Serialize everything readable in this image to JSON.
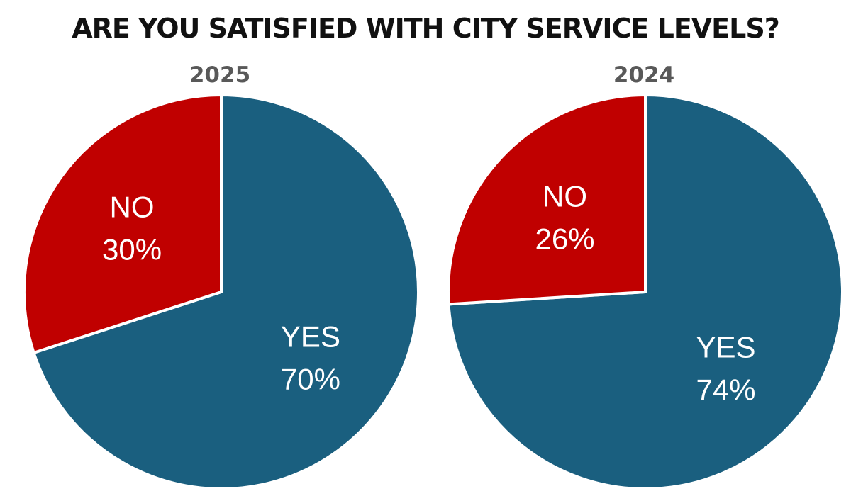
{
  "chart_data": [
    {
      "type": "pie",
      "title": "ARE YOU SATISFIED WITH CITY SERVICE LEVELS?",
      "subtitle": "2025",
      "slices": [
        {
          "label": "YES",
          "value": 70,
          "value_label": "70%",
          "color": "#1A5F7F"
        },
        {
          "label": "NO",
          "value": 30,
          "value_label": "30%",
          "color": "#C00000"
        }
      ]
    },
    {
      "type": "pie",
      "title": "ARE YOU SATISFIED WITH CITY SERVICE LEVELS?",
      "subtitle": "2024",
      "slices": [
        {
          "label": "YES",
          "value": 74,
          "value_label": "74%",
          "color": "#1A5F7F"
        },
        {
          "label": "NO",
          "value": 26,
          "value_label": "26%",
          "color": "#C00000"
        }
      ]
    }
  ],
  "page": {
    "title": "ARE YOU SATISFIED WITH CITY SERVICE LEVELS?"
  }
}
